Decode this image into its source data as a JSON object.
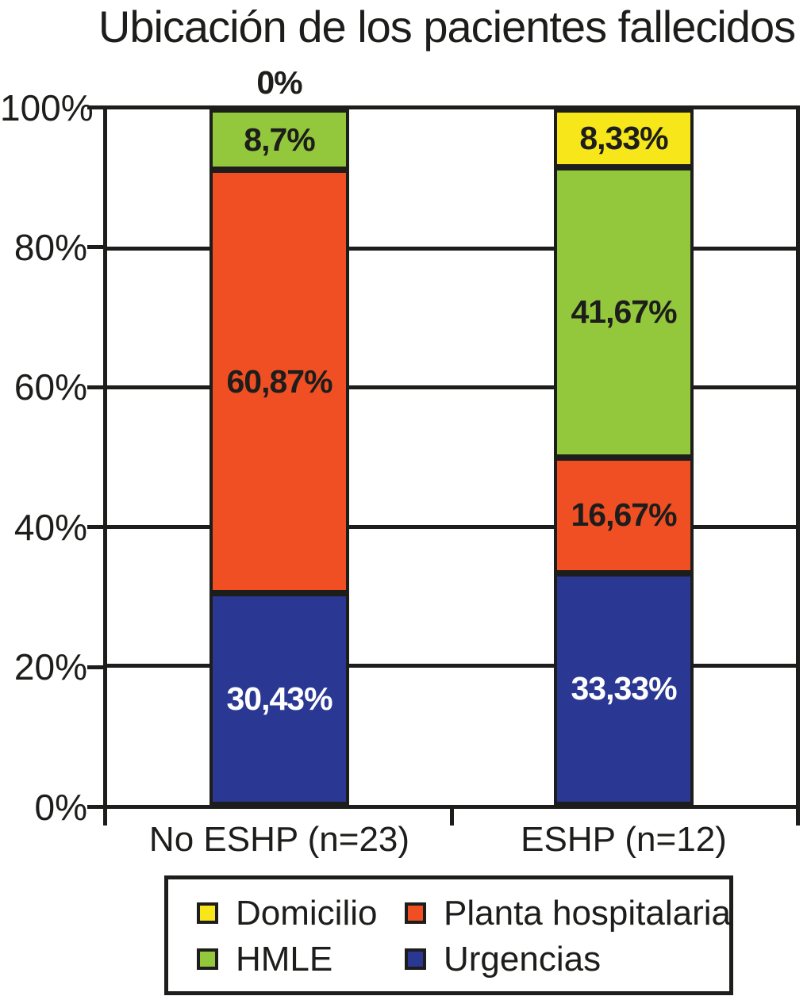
{
  "chart_data": {
    "type": "bar",
    "stacked": true,
    "title": "Ubicación de los pacientes fallecidos",
    "categories": [
      "No ESHP (n=23)",
      "ESHP (n=12)"
    ],
    "series": [
      {
        "name": "Urgencias",
        "color": "#2B3893",
        "label_color": "#FFFFFF",
        "values": [
          30.43,
          33.33
        ],
        "labels": [
          "30,43%",
          "33,33%"
        ]
      },
      {
        "name": "Planta hospitalaria",
        "color": "#F04F24",
        "label_color": "#1D1D1B",
        "values": [
          60.87,
          16.67
        ],
        "labels": [
          "60,87%",
          "16,67%"
        ]
      },
      {
        "name": "HMLE",
        "color": "#93C83D",
        "label_color": "#1D1D1B",
        "values": [
          8.7,
          41.67
        ],
        "labels": [
          "8,7%",
          "41,67%"
        ]
      },
      {
        "name": "Domicilio",
        "color": "#F7E619",
        "label_color": "#1D1D1B",
        "values": [
          0,
          8.33
        ],
        "labels": [
          "0%",
          "8,33%"
        ]
      }
    ],
    "ylim": [
      0,
      100
    ],
    "y_ticks": [
      "0%",
      "20%",
      "40%",
      "60%",
      "80%",
      "100%"
    ],
    "grid": true,
    "legend": {
      "position": "bottom",
      "items": [
        {
          "label": "Domicilio",
          "color": "#F7E619"
        },
        {
          "label": "Planta hospitalaria",
          "color": "#F04F24"
        },
        {
          "label": "HMLE",
          "color": "#93C83D"
        },
        {
          "label": "Urgencias",
          "color": "#2B3893"
        }
      ]
    }
  },
  "colors": {
    "axis": "#1D1D1B",
    "background": "#FFFFFF",
    "bar_label_light": "#FFFFFF",
    "bar_label_dark": "#1D1D1B"
  }
}
